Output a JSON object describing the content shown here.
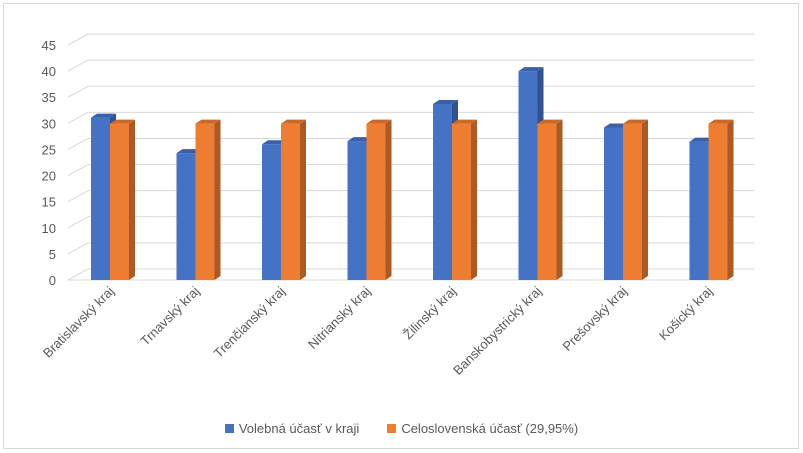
{
  "chart_data": {
    "type": "bar",
    "style": "3d-clustered-column",
    "categories": [
      "Bratislavský kraj",
      "Trnavský kraj",
      "Trenčianský kraj",
      "Nitrianský kraj",
      "Žilinský kraj",
      "Banskobystrický kraj",
      "Prešovský kraj",
      "Košický kraj"
    ],
    "series": [
      {
        "name": "Volebná účasť v kraji",
        "color": "#4472c4",
        "values": [
          31.1,
          24.3,
          26.0,
          26.6,
          33.7,
          40.0,
          29.2,
          26.5
        ]
      },
      {
        "name": "Celoslovenská účasť (29,95%)",
        "color": "#ed7d31",
        "values": [
          29.95,
          29.95,
          29.95,
          29.95,
          29.95,
          29.95,
          29.95,
          29.95
        ]
      }
    ],
    "yticks": [
      "0",
      "5",
      "10",
      "15",
      "20",
      "25",
      "30",
      "35",
      "40",
      "45"
    ],
    "ylim": [
      0,
      45
    ],
    "grid": true,
    "legend_position": "bottom",
    "title": "",
    "xlabel": "",
    "ylabel": ""
  }
}
